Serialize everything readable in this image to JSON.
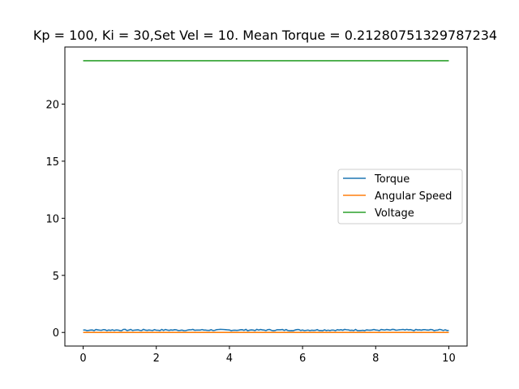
{
  "chart_data": {
    "type": "line",
    "title": "Kp = 100, Ki = 30,Set Vel = 10. Mean Torque = 0.21280751329787234",
    "xlabel": "",
    "ylabel": "",
    "xlim": [
      -0.5,
      10.5
    ],
    "ylim": [
      -1.19,
      25.0
    ],
    "x_ticks": [
      0,
      2,
      4,
      6,
      8,
      10
    ],
    "y_ticks": [
      0,
      5,
      10,
      15,
      20
    ],
    "grid": false,
    "legend_position": "center-right",
    "series": [
      {
        "name": "Torque",
        "color": "#1f77b4",
        "x": [
          0,
          10
        ],
        "y": [
          0.2128,
          0.2128
        ],
        "noise": 0.06
      },
      {
        "name": "Angular Speed",
        "color": "#ff7f0e",
        "x": [
          0,
          10
        ],
        "y": [
          0.0,
          0.0
        ]
      },
      {
        "name": "Voltage",
        "color": "#2ca02c",
        "x": [
          0,
          10
        ],
        "y": [
          23.8,
          23.8
        ]
      }
    ]
  }
}
